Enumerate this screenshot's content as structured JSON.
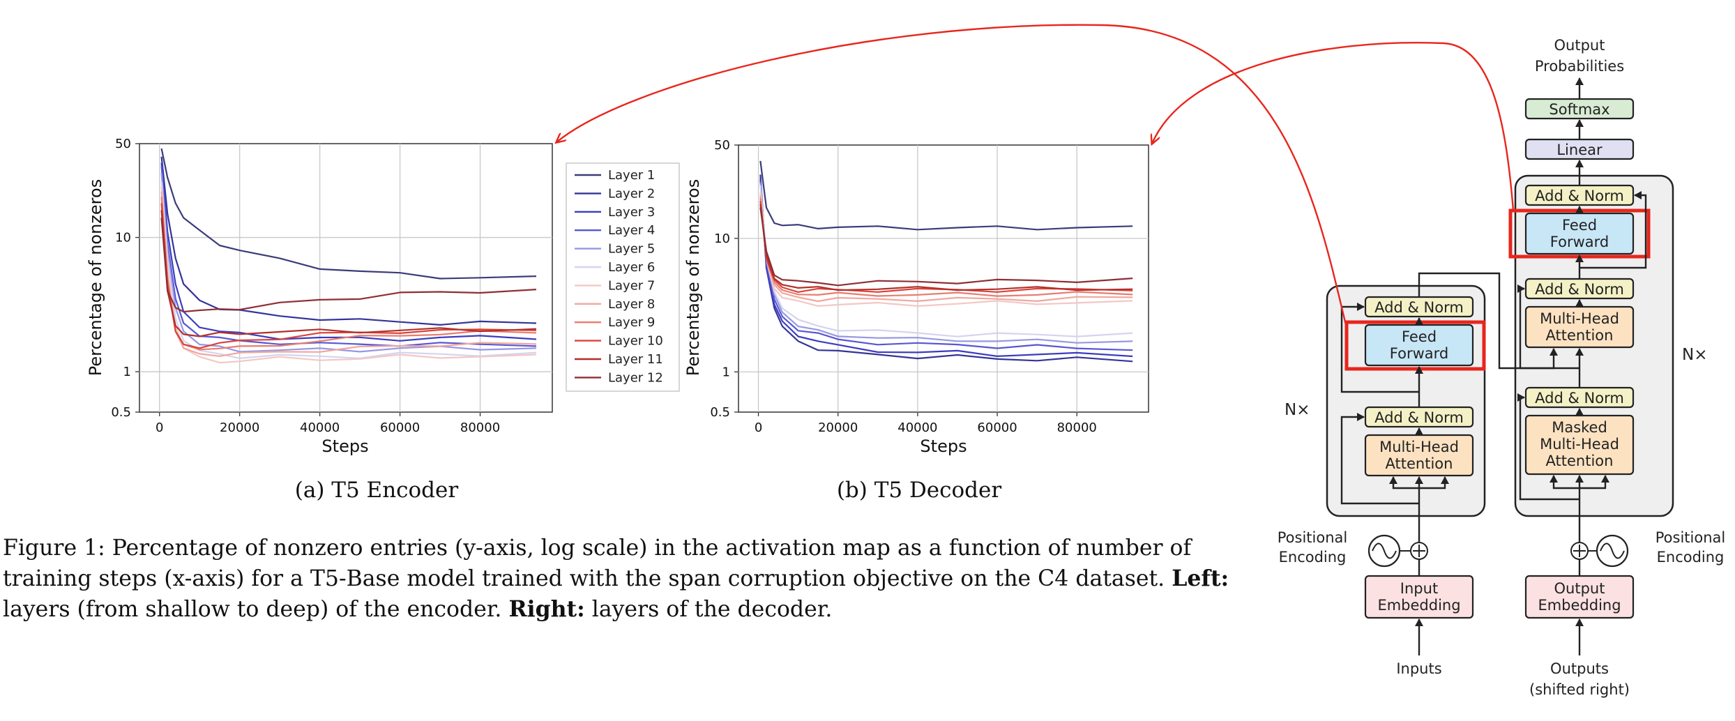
{
  "chart_data": [
    {
      "type": "line",
      "caption": "(a) T5 Encoder",
      "xlabel": "Steps",
      "ylabel": "Percentage of nonzeros",
      "yscale": "log",
      "xlim": [
        -5000,
        98000
      ],
      "ylim": [
        0.5,
        50
      ],
      "xticks": [
        0,
        20000,
        40000,
        60000,
        80000
      ],
      "yticks": [
        0.5,
        1,
        10,
        50
      ],
      "grid": true,
      "legend_position": "right, outside plot",
      "series": [
        {
          "name": "Layer 1",
          "color": "#3b3b7a",
          "x": [
            500,
            2000,
            4000,
            6000,
            10000,
            15000,
            20000,
            30000,
            40000,
            50000,
            60000,
            70000,
            80000,
            94000
          ],
          "y": [
            46,
            28,
            18,
            14,
            11,
            9,
            8,
            6.8,
            6,
            5.6,
            5.3,
            5.1,
            5,
            5
          ]
        },
        {
          "name": "Layer 2",
          "color": "#34349a",
          "x": [
            500,
            2000,
            4000,
            6000,
            10000,
            15000,
            20000,
            30000,
            40000,
            50000,
            60000,
            70000,
            80000,
            94000
          ],
          "y": [
            40,
            15,
            7,
            4.5,
            3.4,
            3,
            2.8,
            2.6,
            2.5,
            2.4,
            2.35,
            2.3,
            2.3,
            2.3
          ]
        },
        {
          "name": "Layer 3",
          "color": "#3c3cc0",
          "x": [
            500,
            2000,
            4000,
            6000,
            10000,
            15000,
            20000,
            30000,
            40000,
            50000,
            60000,
            70000,
            80000,
            94000
          ],
          "y": [
            36,
            11,
            4.5,
            2.8,
            2.2,
            2.0,
            1.9,
            1.8,
            1.8,
            1.75,
            1.75,
            1.8,
            1.8,
            1.8
          ]
        },
        {
          "name": "Layer 4",
          "color": "#5757d4",
          "x": [
            500,
            2000,
            4000,
            6000,
            10000,
            15000,
            20000,
            30000,
            40000,
            50000,
            60000,
            70000,
            80000,
            94000
          ],
          "y": [
            34,
            9,
            3.5,
            2.3,
            1.9,
            1.75,
            1.7,
            1.65,
            1.6,
            1.6,
            1.6,
            1.6,
            1.6,
            1.6
          ]
        },
        {
          "name": "Layer 5",
          "color": "#9797e4",
          "x": [
            500,
            2000,
            4000,
            6000,
            10000,
            15000,
            20000,
            30000,
            40000,
            50000,
            60000,
            70000,
            80000,
            94000
          ],
          "y": [
            30,
            8,
            3,
            2.0,
            1.6,
            1.5,
            1.45,
            1.45,
            1.45,
            1.45,
            1.5,
            1.5,
            1.5,
            1.5
          ]
        },
        {
          "name": "Layer 6",
          "color": "#d4d4f0",
          "x": [
            500,
            2000,
            4000,
            6000,
            10000,
            15000,
            20000,
            30000,
            40000,
            50000,
            60000,
            70000,
            80000,
            94000
          ],
          "y": [
            26,
            7,
            2.5,
            1.7,
            1.4,
            1.35,
            1.3,
            1.3,
            1.3,
            1.3,
            1.35,
            1.35,
            1.35,
            1.35
          ]
        },
        {
          "name": "Layer 7",
          "color": "#f2c8c4",
          "x": [
            500,
            2000,
            4000,
            6000,
            10000,
            15000,
            20000,
            30000,
            40000,
            50000,
            60000,
            70000,
            80000,
            94000
          ],
          "y": [
            24,
            6,
            2.2,
            1.5,
            1.25,
            1.2,
            1.2,
            1.25,
            1.25,
            1.25,
            1.3,
            1.3,
            1.3,
            1.3
          ]
        },
        {
          "name": "Layer 8",
          "color": "#f0a79e",
          "x": [
            500,
            2000,
            4000,
            6000,
            10000,
            15000,
            20000,
            30000,
            40000,
            50000,
            60000,
            70000,
            80000,
            94000
          ],
          "y": [
            22,
            5,
            2.0,
            1.5,
            1.35,
            1.35,
            1.35,
            1.4,
            1.45,
            1.5,
            1.55,
            1.6,
            1.6,
            1.6
          ]
        },
        {
          "name": "Layer 9",
          "color": "#e87d70",
          "x": [
            500,
            2000,
            4000,
            6000,
            10000,
            15000,
            20000,
            30000,
            40000,
            50000,
            60000,
            70000,
            80000,
            94000
          ],
          "y": [
            20,
            5,
            2.0,
            1.6,
            1.5,
            1.5,
            1.5,
            1.6,
            1.7,
            1.8,
            1.9,
            1.9,
            1.95,
            2.0
          ]
        },
        {
          "name": "Layer 10",
          "color": "#d9433a",
          "x": [
            500,
            2000,
            4000,
            6000,
            10000,
            15000,
            20000,
            30000,
            40000,
            50000,
            60000,
            70000,
            80000,
            94000
          ],
          "y": [
            18,
            4.5,
            2.0,
            1.6,
            1.55,
            1.6,
            1.7,
            1.8,
            1.9,
            1.95,
            2.0,
            2.0,
            2.05,
            2.1
          ]
        },
        {
          "name": "Layer 11",
          "color": "#b22f2a",
          "x": [
            500,
            2000,
            4000,
            6000,
            10000,
            15000,
            20000,
            30000,
            40000,
            50000,
            60000,
            70000,
            80000,
            94000
          ],
          "y": [
            16,
            4,
            2.2,
            1.9,
            1.85,
            1.9,
            1.95,
            2.0,
            2.0,
            2.0,
            2.05,
            2.05,
            2.05,
            2.1
          ]
        },
        {
          "name": "Layer 12",
          "color": "#8f2e36",
          "x": [
            500,
            2000,
            4000,
            6000,
            10000,
            15000,
            20000,
            30000,
            40000,
            50000,
            60000,
            70000,
            80000,
            94000
          ],
          "y": [
            14,
            4,
            3.0,
            2.8,
            2.8,
            2.9,
            3.0,
            3.2,
            3.4,
            3.6,
            3.8,
            3.9,
            4.0,
            4.0
          ]
        }
      ]
    },
    {
      "type": "line",
      "caption": "(b) T5 Decoder",
      "xlabel": "Steps",
      "ylabel": "Percentage of nonzeros",
      "yscale": "log",
      "xlim": [
        -5000,
        98000
      ],
      "ylim": [
        0.5,
        50
      ],
      "xticks": [
        0,
        20000,
        40000,
        60000,
        80000
      ],
      "yticks": [
        0.5,
        1,
        10,
        50
      ],
      "grid": true,
      "series": [
        {
          "name": "Layer 1",
          "color": "#3b3b7a",
          "x": [
            500,
            2000,
            4000,
            6000,
            10000,
            15000,
            20000,
            30000,
            40000,
            50000,
            60000,
            70000,
            80000,
            94000
          ],
          "y": [
            38,
            17,
            13,
            12.5,
            12.3,
            12.2,
            12.1,
            12.0,
            12.0,
            12.0,
            12.0,
            12.0,
            12.0,
            12.0
          ]
        },
        {
          "name": "Layer 2",
          "color": "#34349a",
          "x": [
            500,
            2000,
            4000,
            6000,
            10000,
            15000,
            20000,
            30000,
            40000,
            50000,
            60000,
            70000,
            80000,
            94000
          ],
          "y": [
            30,
            6,
            3,
            2.2,
            1.7,
            1.5,
            1.4,
            1.35,
            1.3,
            1.3,
            1.25,
            1.25,
            1.25,
            1.2
          ]
        },
        {
          "name": "Layer 3",
          "color": "#3c3cc0",
          "x": [
            500,
            2000,
            4000,
            6000,
            10000,
            15000,
            20000,
            30000,
            40000,
            50000,
            60000,
            70000,
            80000,
            94000
          ],
          "y": [
            28,
            6,
            3.2,
            2.4,
            1.9,
            1.7,
            1.55,
            1.45,
            1.4,
            1.4,
            1.35,
            1.35,
            1.35,
            1.35
          ]
        },
        {
          "name": "Layer 4",
          "color": "#5757d4",
          "x": [
            500,
            2000,
            4000,
            6000,
            10000,
            15000,
            20000,
            30000,
            40000,
            50000,
            60000,
            70000,
            80000,
            94000
          ],
          "y": [
            27,
            6.5,
            3.5,
            2.6,
            2.1,
            1.9,
            1.75,
            1.65,
            1.6,
            1.6,
            1.55,
            1.55,
            1.5,
            1.5
          ]
        },
        {
          "name": "Layer 5",
          "color": "#9797e4",
          "x": [
            500,
            2000,
            4000,
            6000,
            10000,
            15000,
            20000,
            30000,
            40000,
            50000,
            60000,
            70000,
            80000,
            94000
          ],
          "y": [
            26,
            7,
            3.8,
            2.8,
            2.2,
            2.0,
            1.9,
            1.8,
            1.75,
            1.75,
            1.7,
            1.7,
            1.7,
            1.7
          ]
        },
        {
          "name": "Layer 6",
          "color": "#d4d4f0",
          "x": [
            500,
            2000,
            4000,
            6000,
            10000,
            15000,
            20000,
            30000,
            40000,
            50000,
            60000,
            70000,
            80000,
            94000
          ],
          "y": [
            25,
            7,
            4,
            3,
            2.4,
            2.2,
            2.1,
            2.0,
            1.95,
            1.9,
            1.9,
            1.9,
            1.9,
            1.9
          ]
        },
        {
          "name": "Layer 7",
          "color": "#f2c8c4",
          "x": [
            500,
            2000,
            4000,
            6000,
            10000,
            15000,
            20000,
            30000,
            40000,
            50000,
            60000,
            70000,
            80000,
            94000
          ],
          "y": [
            22,
            7,
            4.2,
            3.6,
            3.3,
            3.2,
            3.2,
            3.2,
            3.2,
            3.25,
            3.3,
            3.3,
            3.3,
            3.3
          ]
        },
        {
          "name": "Layer 8",
          "color": "#f0a79e",
          "x": [
            500,
            2000,
            4000,
            6000,
            10000,
            15000,
            20000,
            30000,
            40000,
            50000,
            60000,
            70000,
            80000,
            94000
          ],
          "y": [
            21,
            7,
            4.5,
            3.9,
            3.6,
            3.5,
            3.5,
            3.5,
            3.5,
            3.5,
            3.5,
            3.5,
            3.55,
            3.6
          ]
        },
        {
          "name": "Layer 9",
          "color": "#e87d70",
          "x": [
            500,
            2000,
            4000,
            6000,
            10000,
            15000,
            20000,
            30000,
            40000,
            50000,
            60000,
            70000,
            80000,
            94000
          ],
          "y": [
            20,
            7,
            4.7,
            4.1,
            3.9,
            3.8,
            3.8,
            3.8,
            3.8,
            3.8,
            3.8,
            3.8,
            3.85,
            3.9
          ]
        },
        {
          "name": "Layer 10",
          "color": "#d9433a",
          "x": [
            500,
            2000,
            4000,
            6000,
            10000,
            15000,
            20000,
            30000,
            40000,
            50000,
            60000,
            70000,
            80000,
            94000
          ],
          "y": [
            19,
            7,
            4.9,
            4.3,
            4.1,
            4.1,
            4.1,
            4.1,
            4.1,
            4.1,
            4.1,
            4.1,
            4.15,
            4.2
          ]
        },
        {
          "name": "Layer 11",
          "color": "#b22f2a",
          "x": [
            500,
            2000,
            4000,
            6000,
            10000,
            15000,
            20000,
            30000,
            40000,
            50000,
            60000,
            70000,
            80000,
            94000
          ],
          "y": [
            18,
            7.5,
            5.0,
            4.5,
            4.3,
            4.2,
            4.2,
            4.2,
            4.2,
            4.2,
            4.2,
            4.2,
            4.2,
            4.2
          ]
        },
        {
          "name": "Layer 12",
          "color": "#8f2e36",
          "x": [
            500,
            2000,
            4000,
            6000,
            10000,
            15000,
            20000,
            30000,
            40000,
            50000,
            60000,
            70000,
            80000,
            94000
          ],
          "y": [
            17,
            8,
            5.3,
            4.9,
            4.7,
            4.6,
            4.6,
            4.7,
            4.7,
            4.75,
            4.8,
            4.8,
            4.85,
            4.9
          ]
        }
      ]
    }
  ],
  "caption": {
    "prefix": "Figure 1: Percentage of nonzero entries (y-axis, log scale) in the activation map as a function of number of training steps (x-axis) for a T5-Base model trained with the span corruption objective on the C4 dataset.",
    "left_bold": "Left:",
    "left_text": "layers (from shallow to deep) of the encoder.",
    "right_bold": "Right:",
    "right_text": "layers of the decoder."
  },
  "diagram": {
    "output_probabilities": [
      "Output",
      "Probabilities"
    ],
    "softmax": "Softmax",
    "linear": "Linear",
    "add_norm": "Add & Norm",
    "feed_forward": [
      "Feed",
      "Forward"
    ],
    "multi_head_attention": [
      "Multi-Head",
      "Attention"
    ],
    "masked_multi_head_attention": [
      "Masked",
      "Multi-Head",
      "Attention"
    ],
    "nx": "N×",
    "positional_encoding": [
      "Positional",
      "Encoding"
    ],
    "input_embedding": [
      "Input",
      "Embedding"
    ],
    "output_embedding": [
      "Output",
      "Embedding"
    ],
    "inputs": "Inputs",
    "outputs": [
      "Outputs",
      "(shifted right)"
    ],
    "colors": {
      "highlight": "#e8261d",
      "add_norm_fill": "#f4f1c6",
      "feed_forward_fill": "#c7e6f6",
      "attention_fill": "#fde2c1",
      "embedding_fill": "#fbe1e2",
      "softmax_fill": "#d8ecd4",
      "linear_fill": "#dfe0f2",
      "block_fill": "#efefef"
    }
  }
}
